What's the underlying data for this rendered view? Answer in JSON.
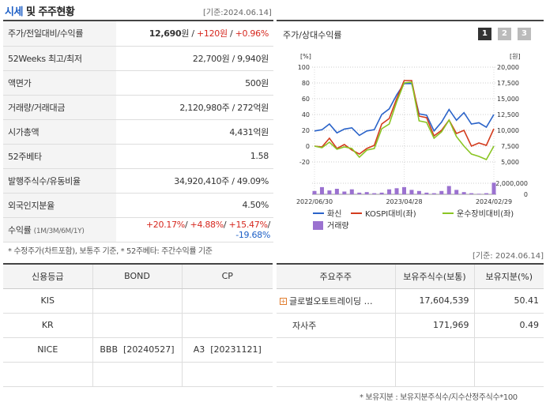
{
  "header": {
    "title_part1": "시세",
    "title_part2": " 및 주주현황",
    "date": "[기준:2024.06.14]"
  },
  "stock": {
    "price_label": "주가/전일대비/수익률",
    "price": "12,690",
    "price_unit": "원 / ",
    "change": "+120원",
    "sep": " / ",
    "change_pct": "+0.96%",
    "w52_label": "52Weeks 최고/최저",
    "w52_value": "22,700원 / 9,940원",
    "par_label": "액면가",
    "par_value": "500원",
    "volume_label": "거래량/거래대금",
    "volume_value": "2,120,980주 / 272억원",
    "mcap_label": "시가총액",
    "mcap_value": "4,431억원",
    "beta_label": "52주베타",
    "beta_value": "1.58",
    "shares_label": "발행주식수/유동비율",
    "shares_value": "34,920,410주 / 49.09%",
    "foreign_label": "외국인지분율",
    "foreign_value": "4.50%",
    "return_label": "수익률",
    "return_periods": "(1M/3M/6M/1Y)",
    "return_1m": "+20.17%",
    "return_3m": "+4.88%",
    "return_6m": "+15.47%",
    "return_1y": "-19.68%",
    "slash": "/ ",
    "note": "* 수정주가(차트포함), 보통주 기준, * 52주베타: 주간수익률 기준"
  },
  "chart_panel": {
    "title": "주가/상대수익률",
    "buttons": [
      "1",
      "2",
      "3"
    ]
  },
  "chart_data": {
    "type": "line",
    "left_unit": "[%]",
    "right_unit": "[원]",
    "left_ticks": [
      "100",
      "80",
      "60",
      "40",
      "20",
      "0",
      "-20"
    ],
    "right_ticks": [
      "20,000",
      "17,500",
      "15,000",
      "12,500",
      "10,000",
      "7,500",
      "5,000"
    ],
    "volume_ticks": [
      "2,000,000",
      "0"
    ],
    "x_labels": [
      "2022/06/30",
      "2023/04/28",
      "2024/02/29"
    ],
    "ylim_left": [
      -20,
      100
    ],
    "ylim_right": [
      5000,
      20000
    ],
    "series": [
      {
        "name": "화신",
        "color": "#2a63c9",
        "axis": "right",
        "values": [
          9900,
          10100,
          11000,
          9600,
          10200,
          10400,
          9200,
          9900,
          10100,
          12500,
          13400,
          15600,
          17400,
          17400,
          12600,
          12400,
          9900,
          11300,
          13300,
          11600,
          12800,
          11000,
          11200,
          10500,
          12500
        ]
      },
      {
        "name": "KOSPI대비(좌)",
        "color": "#d33c1e",
        "axis": "left",
        "values": [
          0,
          -1,
          10,
          -3,
          2,
          -5,
          -10,
          -3,
          1,
          28,
          35,
          60,
          83,
          83,
          38,
          36,
          13,
          20,
          33,
          16,
          20,
          0,
          4,
          1,
          22
        ]
      },
      {
        "name": "운수장비대비(좌)",
        "color": "#8ac523",
        "axis": "left",
        "values": [
          0,
          -2,
          5,
          -4,
          -1,
          -3,
          -14,
          -5,
          -3,
          22,
          28,
          56,
          80,
          81,
          32,
          30,
          10,
          18,
          33,
          12,
          0,
          -10,
          -13,
          -17,
          0
        ]
      }
    ],
    "volume": {
      "name": "거래량",
      "color": "#9b72d0",
      "values": [
        600000,
        1300000,
        700000,
        1000000,
        500000,
        900000,
        300000,
        400000,
        200000,
        300000,
        900000,
        1100000,
        1300000,
        800000,
        600000,
        300000,
        200000,
        600000,
        1500000,
        800000,
        400000,
        200000,
        100000,
        200000,
        2100000
      ]
    }
  },
  "credit": {
    "headers": [
      "신용등급",
      "BOND",
      "CP"
    ],
    "rows": [
      [
        "KIS",
        "",
        ""
      ],
      [
        "KR",
        "",
        ""
      ],
      [
        "NICE",
        "BBB  [20240527]",
        "A3  [20231121]"
      ],
      [
        "",
        "",
        ""
      ]
    ]
  },
  "holders": {
    "date": "[기준: 2024.06.14]",
    "headers": [
      "주요주주",
      "보유주식수(보통)",
      "보유지분(%)"
    ],
    "rows": [
      [
        "글로벌오토트레이딩 …",
        "17,604,539",
        "50.41"
      ],
      [
        "자사주",
        "171,969",
        "0.49"
      ],
      [
        "",
        "",
        ""
      ],
      [
        "",
        "",
        ""
      ]
    ],
    "note": "* 보유지분 : 보유지분주식수/지수산정주식수*100"
  }
}
